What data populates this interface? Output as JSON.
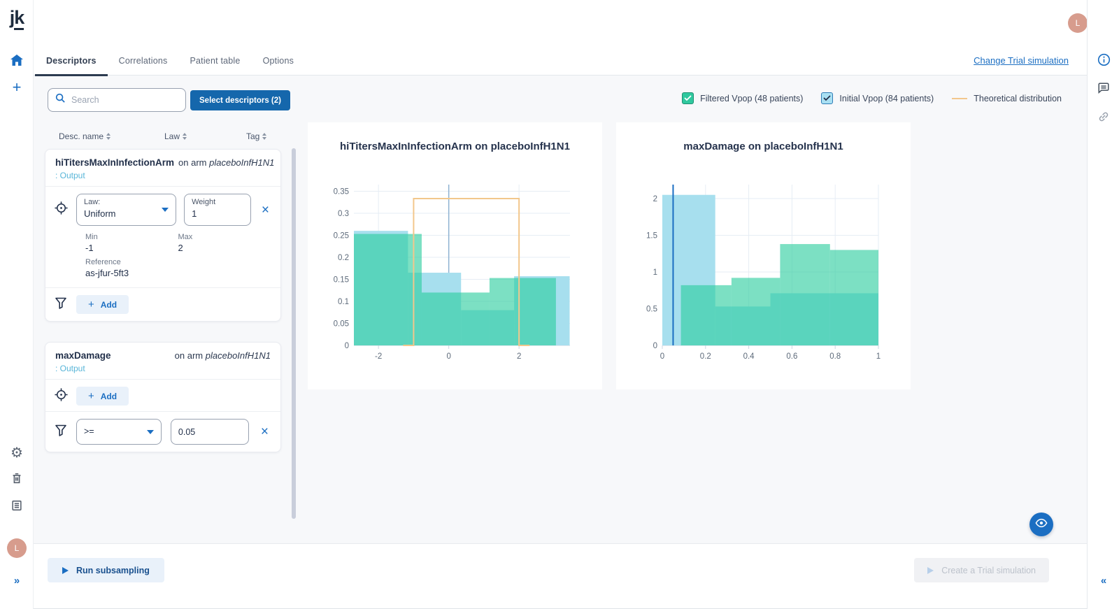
{
  "logo": "jk",
  "tabs": {
    "items": [
      {
        "label": "Descriptors"
      },
      {
        "label": "Correlations"
      },
      {
        "label": "Patient table"
      },
      {
        "label": "Options"
      }
    ],
    "change_link": "Change Trial simulation"
  },
  "avatar": {
    "initial": "L"
  },
  "icons": {
    "chevrons_right": "»",
    "chevrons_left": "«",
    "close": "×",
    "plus": "+",
    "gear": "⚙"
  },
  "panel": {
    "search_placeholder": "Search",
    "select_button": "Select descriptors (2)",
    "columns": {
      "name": "Desc. name",
      "law": "Law",
      "tag": "Tag"
    },
    "card1": {
      "name": "hiTitersMaxInInfectionArm",
      "on_arm_prefix": "on arm",
      "arm": "placeboInfH1N1",
      "tag": ": Output",
      "law_label": "Law:",
      "law_value": "Uniform",
      "weight_label": "Weight",
      "weight_value": "1",
      "min_label": "Min",
      "min_value": "-1",
      "max_label": "Max",
      "max_value": "2",
      "reference_label": "Reference",
      "reference_value": "as-jfur-5ft3",
      "add_label": "Add"
    },
    "card2": {
      "name": "maxDamage",
      "on_arm_prefix": "on arm",
      "arm": "placeboInfH1N1",
      "tag": ": Output",
      "add_label": "Add",
      "filter_operator": ">=",
      "filter_value": "0.05"
    }
  },
  "legend": {
    "filtered": "Filtered Vpop (48 patients)",
    "initial": "Initial Vpop (84 patients)",
    "theoretical": "Theoretical distribution"
  },
  "footer": {
    "run": "Run subsampling",
    "create": "Create a Trial simulation"
  },
  "colors": {
    "accent": "#1b6ec2",
    "filtered_green": "rgba(43,205,158,0.62)",
    "initial_blue": "#a7dfee",
    "theoretical_orange": "#f2c78c"
  },
  "chart_data": [
    {
      "type": "histogram",
      "title": "hiTitersMaxInInfectionArm on placeboInfH1N1",
      "xlim": [
        -2.7,
        3.45
      ],
      "ylim": [
        0,
        0.365
      ],
      "xticks": [
        -2,
        0,
        2
      ],
      "yticks": [
        0,
        0.05,
        0.1,
        0.15,
        0.2,
        0.25,
        0.3,
        0.35
      ],
      "series": [
        {
          "name": "Initial Vpop (84 patients)",
          "color": "#a7dfee",
          "bins": [
            [
              -2.7,
              -1.16,
              0.26
            ],
            [
              -1.16,
              0.35,
              0.165
            ],
            [
              0.35,
              1.86,
              0.08
            ],
            [
              1.86,
              3.44,
              0.157
            ]
          ]
        },
        {
          "name": "Filtered Vpop (48 patients)",
          "color": "rgba(43,205,158,0.62)",
          "bins": [
            [
              -2.7,
              -0.77,
              0.253
            ],
            [
              -0.77,
              1.16,
              0.12
            ],
            [
              1.16,
              3.05,
              0.153
            ]
          ]
        }
      ],
      "theoretical": {
        "name": "Theoretical distribution",
        "color": "#f2c78c",
        "x0": -1,
        "x1": 2,
        "height": 0.3333,
        "feet": 0.3
      },
      "vline": {
        "x": 0,
        "color": "#8fb2d2",
        "width": 1.5,
        "layer": "under"
      }
    },
    {
      "type": "histogram",
      "title": "maxDamage on placeboInfH1N1",
      "xlim": [
        0,
        1
      ],
      "ylim": [
        0,
        2.19
      ],
      "xticks": [
        0,
        0.2,
        0.4,
        0.6,
        0.8,
        1
      ],
      "yticks": [
        0,
        0.5,
        1,
        1.5,
        2
      ],
      "series": [
        {
          "name": "Initial Vpop (84 patients)",
          "color": "#a7dfee",
          "bins": [
            [
              0,
              0.245,
              2.05
            ],
            [
              0.245,
              0.5,
              0.53
            ],
            [
              0.5,
              1,
              0.71
            ]
          ]
        },
        {
          "name": "Filtered Vpop (48 patients)",
          "color": "rgba(43,205,158,0.62)",
          "bins": [
            [
              0.086,
              0.32,
              0.82
            ],
            [
              0.32,
              0.545,
              0.92
            ],
            [
              0.545,
              0.776,
              1.38
            ],
            [
              0.776,
              1,
              1.3
            ]
          ]
        }
      ],
      "vline": {
        "x": 0.05,
        "color": "#1b6ec2",
        "width": 2,
        "layer": "over"
      }
    }
  ]
}
